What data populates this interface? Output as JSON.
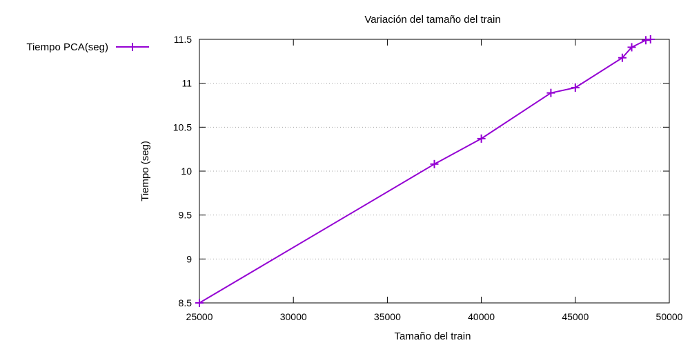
{
  "chart_data": {
    "type": "line",
    "title": "Variación del tamaño del train",
    "xlabel": "Tamaño del train",
    "ylabel": "Tiempo (seg)",
    "xlim": [
      25000,
      50000
    ],
    "ylim": [
      8.5,
      11.5
    ],
    "xticks": [
      25000,
      30000,
      35000,
      40000,
      45000,
      50000
    ],
    "yticks": [
      8.5,
      9,
      9.5,
      10,
      10.5,
      11,
      11.5
    ],
    "xtick_labels": [
      "25000",
      "30000",
      "35000",
      "40000",
      "45000",
      "50000"
    ],
    "ytick_labels": [
      "8.5",
      "9",
      "9.5",
      "10",
      "10.5",
      "11",
      "11.5"
    ],
    "grid": "horizontal-dotted",
    "legend_position": "top-left-outside",
    "series": [
      {
        "name": "Tiempo PCA(seg)",
        "color": "#9400d3",
        "marker": "plus",
        "x": [
          25000,
          37500,
          40000,
          43700,
          45000,
          47500,
          48000,
          48750,
          49000
        ],
        "y": [
          8.5,
          10.08,
          10.37,
          10.89,
          10.95,
          11.29,
          11.41,
          11.49,
          11.5
        ]
      }
    ]
  }
}
